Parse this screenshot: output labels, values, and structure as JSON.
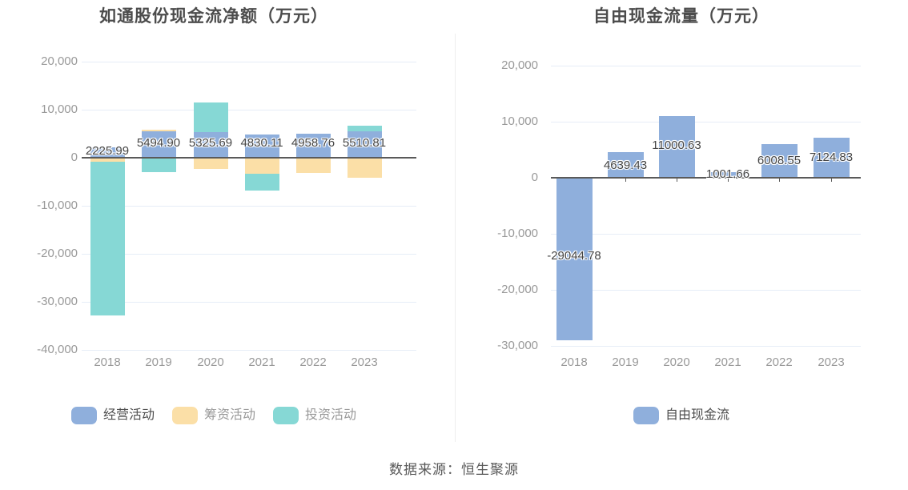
{
  "page": {
    "source_note": "数据来源：恒生聚源"
  },
  "colors": {
    "grid": "#E6EDF7",
    "axis_line": "#5A5A5A",
    "tick_text": "#999999",
    "title_text": "#4C4C4C",
    "label_text": "#444444",
    "legend_active_text": "#4D4D4D",
    "legend_muted_text": "#999999",
    "source_text": "#595959",
    "divider": "#EDEDED",
    "blue": "#8FAFDC",
    "orange": "#FBDFA7",
    "teal": "#86D8D5"
  },
  "chart_data": [
    {
      "type": "bar",
      "title": "如通股份现金流净额（万元）",
      "categories": [
        "2018",
        "2019",
        "2020",
        "2021",
        "2022",
        "2023"
      ],
      "bar_mode": "overlap-from-zero",
      "series": [
        {
          "key": "operating",
          "name": "经营活动",
          "color": "#8FAFDC",
          "values": [
            2225.99,
            5494.9,
            5325.69,
            4830.11,
            4958.76,
            5510.81
          ],
          "value_labels": [
            "2225.99",
            "5494.90",
            "5325.69",
            "4830.11",
            "4958.76",
            "5510.81"
          ]
        },
        {
          "key": "financing",
          "name": "筹资活动",
          "color": "#FBDFA7",
          "values": [
            -750,
            5900,
            -2300,
            -3300,
            -3200,
            -4100
          ],
          "values_estimated_from_pixels": true
        },
        {
          "key": "investing",
          "name": "投资活动",
          "color": "#86D8D5",
          "values": [
            -32900,
            -3000,
            11500,
            -6900,
            -2500,
            6600
          ],
          "values_estimated_from_pixels": true
        }
      ],
      "y_axis": {
        "tick_labels": [
          "20,000",
          "10,000",
          "0",
          "-10,000",
          "-20,000",
          "-30,000",
          "-40,000"
        ],
        "max": 20000,
        "min": -40000,
        "step": 10000
      },
      "legend": {
        "items": [
          "经营活动",
          "筹资活动",
          "投资活动"
        ],
        "emphasized_item": "经营活动"
      },
      "grid": true,
      "legend_position": "bottom"
    },
    {
      "type": "bar",
      "title": "自由现金流量（万元）",
      "categories": [
        "2018",
        "2019",
        "2020",
        "2021",
        "2022",
        "2023"
      ],
      "bar_mode": "single",
      "series": [
        {
          "key": "free-cash-flow",
          "name": "自由现金流",
          "color": "#8FAFDC",
          "values": [
            -29044.78,
            4639.43,
            11000.63,
            1001.66,
            6008.55,
            7124.83
          ],
          "value_labels": [
            "-29044.78",
            "4639.43",
            "11000.63",
            "1001.66",
            "6008.55",
            "7124.83"
          ]
        }
      ],
      "y_axis": {
        "tick_labels": [
          "20,000",
          "10,000",
          "0",
          "-10,000",
          "-20,000",
          "-30,000"
        ],
        "max": 20000,
        "min": -30000,
        "step": 10000
      },
      "legend": {
        "items": [
          "自由现金流"
        ],
        "emphasized_item": "自由现金流"
      },
      "grid": true,
      "legend_position": "bottom"
    }
  ]
}
